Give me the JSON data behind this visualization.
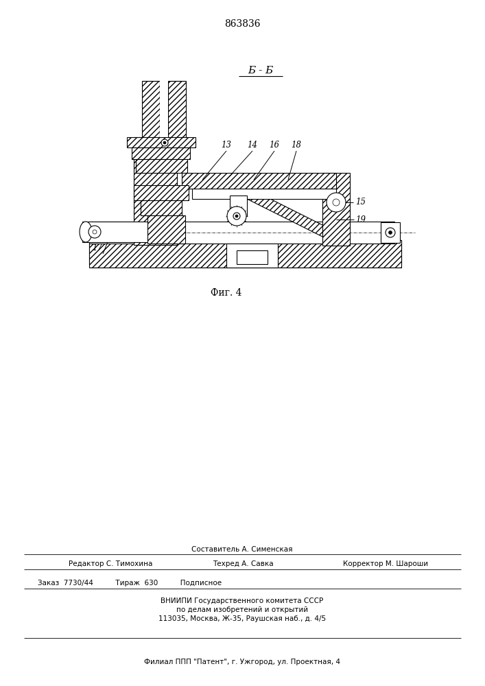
{
  "patent_number": "863836",
  "section_label": "Б - Б",
  "figure_label": "Фиг. 4",
  "bg_color": "#ffffff",
  "line_color": "#000000",
  "fig_width": 7.07,
  "fig_height": 10.0,
  "bottom_text_line1": "Составитель А. Сименская",
  "bottom_text_line2_left": "Редактор С. Тимохина",
  "bottom_text_line2_mid": "Техред А. Савка",
  "bottom_text_line2_right": "Корректор М. Шароши",
  "bottom_text_line3": "Заказ  7730/44          Тираж  630          Подписное",
  "bottom_text_line4": "ВНИИПИ Государственного комитета СССР",
  "bottom_text_line5": "по делам изобретений и открытий",
  "bottom_text_line6": "113035, Москва, Ж-35, Раушская наб., д. 4/5",
  "bottom_text_line7": "Филиал ППП \"Патент\", г. Ужгород, ул. Проектная, 4"
}
